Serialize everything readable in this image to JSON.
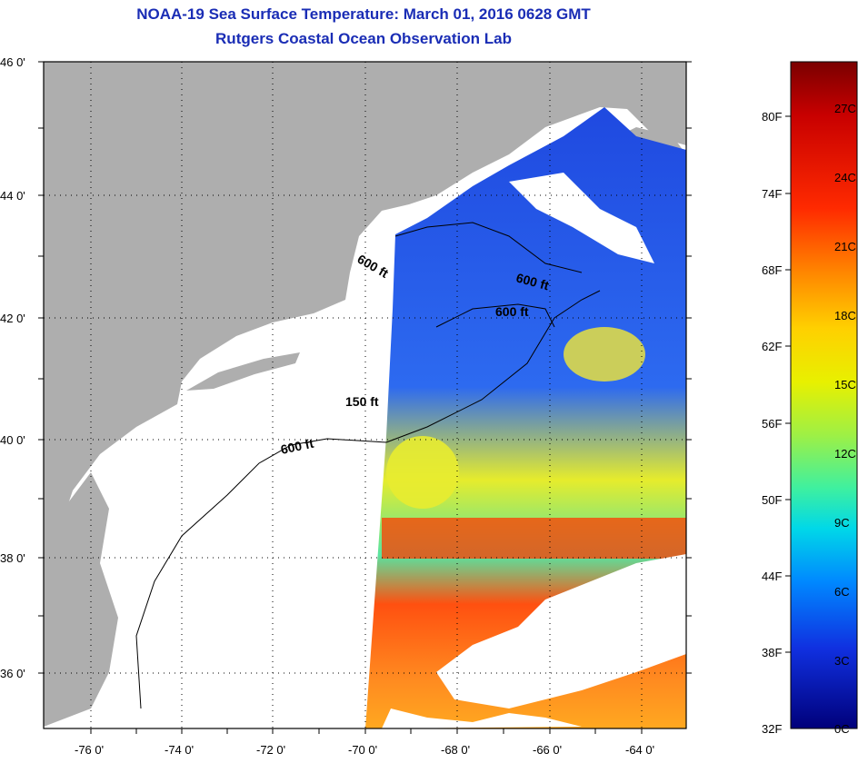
{
  "header": {
    "title": "NOAA-19 Sea Surface Temperature:  March 01, 2016 0628 GMT",
    "subtitle": "Rutgers Coastal Ocean Observation Lab"
  },
  "map": {
    "lat_labels": [
      "46 0'",
      "44 0'",
      "42 0'",
      "40 0'",
      "38 0'",
      "36 0'"
    ],
    "lon_labels": [
      "-76 0'",
      "-74 0'",
      "-72 0'",
      "-70 0'",
      "-68 0'",
      "-66 0'",
      "-64 0'"
    ],
    "contour_labels": [
      "600 ft",
      "600 ft",
      "600 ft",
      "150 ft",
      "600 ft"
    ],
    "colors": {
      "land": "#aeaeae",
      "cloud": "#ffffff",
      "frame": "#000000"
    }
  },
  "colorbar": {
    "fahrenheit": [
      "80F",
      "74F",
      "68F",
      "62F",
      "56F",
      "50F",
      "44F",
      "38F",
      "32F"
    ],
    "celsius": [
      "27C",
      "24C",
      "21C",
      "18C",
      "15C",
      "12C",
      "9C",
      "6C",
      "3C",
      "0C"
    ],
    "colors": [
      "#7a0000",
      "#c80000",
      "#ff2000",
      "#ff7a00",
      "#ffc800",
      "#e8f000",
      "#9ef045",
      "#3ef0a0",
      "#00d8e8",
      "#0088ff",
      "#1030e0",
      "#00007a"
    ]
  }
}
